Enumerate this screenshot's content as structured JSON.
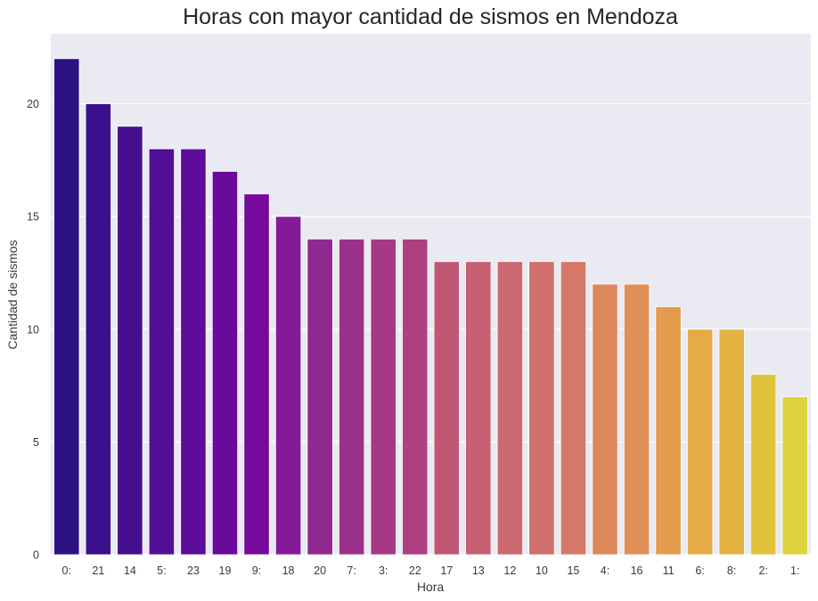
{
  "chart_data": {
    "type": "bar",
    "title": "Horas con mayor cantidad de sismos en Mendoza",
    "xlabel": "Hora",
    "ylabel": "Cantidad de sismos",
    "categories": [
      "0:",
      "21",
      "14",
      "5:",
      "23",
      "19",
      "9:",
      "18",
      "20",
      "7:",
      "3:",
      "22",
      "17",
      "13",
      "12",
      "10",
      "15",
      "4:",
      "16",
      "11",
      "6:",
      "8:",
      "2:",
      "1:"
    ],
    "values": [
      22,
      20,
      19,
      18,
      18,
      17,
      16,
      15,
      14,
      14,
      14,
      14,
      13,
      13,
      13,
      13,
      13,
      12,
      12,
      11,
      10,
      10,
      8,
      7
    ],
    "colors": [
      "#2c1283",
      "#3a0f8c",
      "#44108f",
      "#520e95",
      "#5c0c98",
      "#690a9c",
      "#760a9c",
      "#831a98",
      "#91288f",
      "#9b318a",
      "#a63885",
      "#af3f80",
      "#c05875",
      "#c66072",
      "#cc6870",
      "#d06f6c",
      "#d57868",
      "#dd8858",
      "#e09055",
      "#e39b4e",
      "#e4ab46",
      "#e3b441",
      "#e0c23b",
      "#ded13e"
    ],
    "yticks": [
      0,
      5,
      10,
      15,
      20
    ],
    "ylim": [
      0,
      23.1
    ],
    "grid": true,
    "background": "#eaeaf2"
  }
}
